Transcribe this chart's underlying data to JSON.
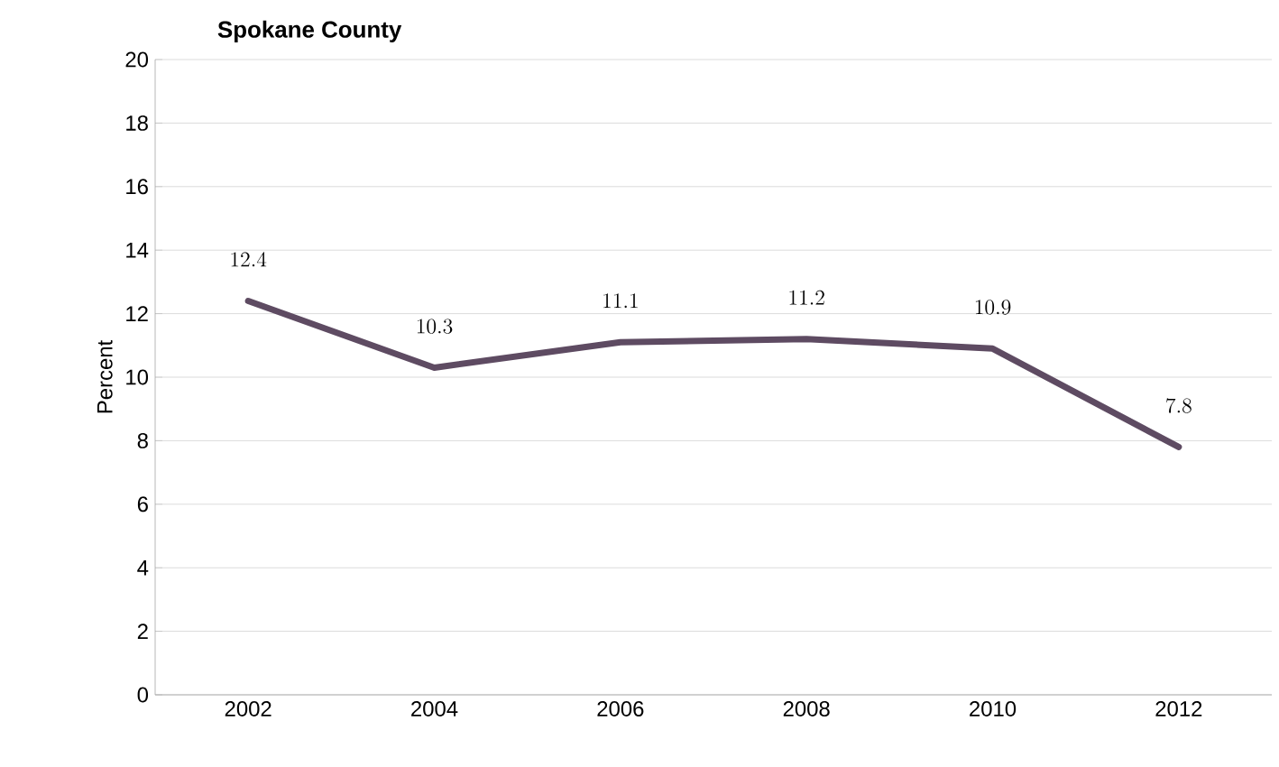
{
  "chart_data": {
    "type": "line",
    "title": "Spokane County",
    "ylabel": "Percent",
    "categories": [
      "2002",
      "2004",
      "2006",
      "2008",
      "2010",
      "2012"
    ],
    "series": [
      {
        "color": "#5e4b62",
        "values": [
          12.4,
          10.3,
          11.1,
          11.2,
          10.9,
          7.8
        ]
      }
    ],
    "ylim": [
      0,
      20
    ],
    "yticks": [
      0,
      2,
      4,
      6,
      8,
      10,
      12,
      14,
      16,
      18,
      20
    ],
    "grid": "y",
    "data_labels": true,
    "marker": "none",
    "line_style": "solid"
  }
}
